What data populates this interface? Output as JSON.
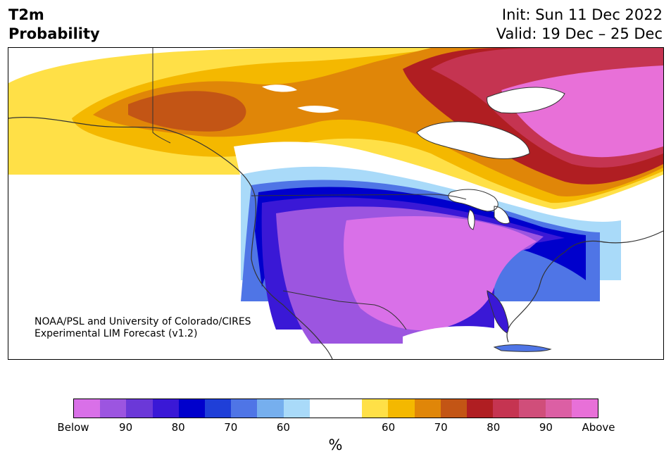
{
  "header": {
    "title_line1": "T2m",
    "title_line2": "Probability",
    "init": "Init: Sun 11 Dec 2022",
    "valid": "Valid: 19 Dec – 25 Dec"
  },
  "credit": {
    "line1": "NOAA/PSL and University of Colorado/CIRES",
    "line2": "Experimental LIM Forecast (v1.2)"
  },
  "colorbar": {
    "colors": [
      "#d970e8",
      "#9c55e0",
      "#6b38d8",
      "#3a18d6",
      "#0000cc",
      "#1f3fd8",
      "#4f75e6",
      "#76afee",
      "#a9daf9",
      "#ffffff",
      "#ffffff",
      "#ffe047",
      "#f4b800",
      "#e08608",
      "#c35515",
      "#b01e22",
      "#c53451",
      "#d04e7a",
      "#dc5fa4",
      "#e870d8"
    ],
    "ticks": [
      "Below",
      "90",
      "80",
      "70",
      "60",
      "60",
      "70",
      "80",
      "90",
      "Above"
    ],
    "unit": "%"
  },
  "map": {
    "region": "North America",
    "colors": {
      "above_90": "#e870d8",
      "above_80": "#d04e7a",
      "above_70": "#b01e22",
      "above_60": "#e08608",
      "warm_light": "#f4b800",
      "warm_lightest": "#ffe047",
      "near_normal": "#ffffff",
      "cold_light": "#a9daf9",
      "cold_60": "#4f75e6",
      "cold_70": "#0000cc",
      "cold_80": "#3a18d6",
      "cold_90": "#9c55e0",
      "below_extreme": "#d970e8"
    }
  }
}
